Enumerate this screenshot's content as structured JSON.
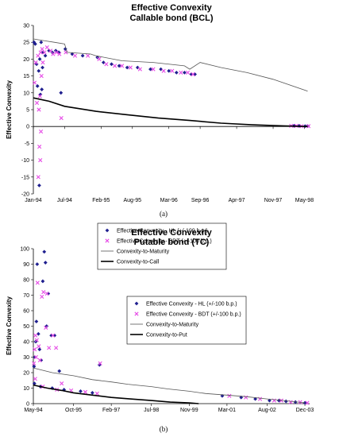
{
  "chart_data": [
    {
      "type": "scatter",
      "title": "Effective Convexity",
      "subtitle": "Callable bond (BCL)",
      "ylabel": "Effective Convexity",
      "xlabel": "",
      "panel_label": "(a)",
      "ylim": [
        -20,
        30
      ],
      "yticks": [
        -20,
        -15,
        -10,
        -5,
        0,
        5,
        10,
        15,
        20,
        25,
        30
      ],
      "xlim": [
        "1994-01",
        "1998-06"
      ],
      "xticks": [
        {
          "date": "1994-01",
          "label": "Jan-94"
        },
        {
          "date": "1994-07",
          "label": "Jul-94"
        },
        {
          "date": "1995-02",
          "label": "Feb-95"
        },
        {
          "date": "1995-08",
          "label": "Aug-95"
        },
        {
          "date": "1996-03",
          "label": "Mar-96"
        },
        {
          "date": "1996-09",
          "label": "Sep-96"
        },
        {
          "date": "1997-04",
          "label": "Apr-97"
        },
        {
          "date": "1997-11",
          "label": "Nov-97"
        },
        {
          "date": "1998-05",
          "label": "May-98"
        }
      ],
      "grid": false,
      "legend_position": "bottom-center",
      "series": [
        {
          "name": "Effective Convexity - HL (+/-100 b.p.)",
          "marker": "diamond",
          "color": "#1f1f8f",
          "points": [
            [
              "1994-01-05",
              25.0
            ],
            [
              "1994-01-12",
              24.5
            ],
            [
              "1994-01-20",
              18.5
            ],
            [
              "1994-01-25",
              12.0
            ],
            [
              "1994-02-02",
              16.5
            ],
            [
              "1994-02-08",
              20.0
            ],
            [
              "1994-02-12",
              9.5
            ],
            [
              "1994-02-16",
              25.0
            ],
            [
              "1994-02-20",
              11.0
            ],
            [
              "1994-02-24",
              17.5
            ],
            [
              "1994-02-05",
              -17.5
            ],
            [
              "1994-02-28",
              22.0
            ],
            [
              "1994-03-10",
              21.0
            ],
            [
              "1994-04-01",
              22.5
            ],
            [
              "1994-04-20",
              22.0
            ],
            [
              "1994-05-10",
              22.5
            ],
            [
              "1994-05-28",
              22.0
            ],
            [
              "1994-06-10",
              10.0
            ],
            [
              "1994-07-05",
              23.0
            ],
            [
              "1994-08-15",
              21.5
            ],
            [
              "1994-10-15",
              21.0
            ],
            [
              "1995-01-10",
              20.5
            ],
            [
              "1995-02-15",
              19.0
            ],
            [
              "1995-04-01",
              18.5
            ],
            [
              "1995-05-15",
              18.0
            ],
            [
              "1995-07-01",
              17.5
            ],
            [
              "1995-09-01",
              17.5
            ],
            [
              "1995-11-15",
              17.0
            ],
            [
              "1996-01-15",
              17.0
            ],
            [
              "1996-03-01",
              16.5
            ],
            [
              "1996-04-15",
              16.0
            ],
            [
              "1996-06-01",
              16.0
            ],
            [
              "1996-07-10",
              15.5
            ],
            [
              "1996-08-01",
              15.5
            ],
            [
              "1998-03-01",
              0.2
            ],
            [
              "1998-04-01",
              0.2
            ],
            [
              "1998-05-05",
              0.1
            ],
            [
              "1998-05-20",
              0.1
            ]
          ]
        },
        {
          "name": "Effective Convexity - BDT (+/-100 b.p.)",
          "marker": "x",
          "color": "#e64ce6",
          "points": [
            [
              "1994-01-08",
              13.0
            ],
            [
              "1994-01-15",
              19.0
            ],
            [
              "1994-01-22",
              7.0
            ],
            [
              "1994-01-28",
              21.0
            ],
            [
              "1994-02-03",
              5.0
            ],
            [
              "1994-02-06",
              -6.0
            ],
            [
              "1994-02-09",
              9.0
            ],
            [
              "1994-02-11",
              -10.0
            ],
            [
              "1994-02-13",
              22.0
            ],
            [
              "1994-02-15",
              -1.5
            ],
            [
              "1994-02-18",
              15.0
            ],
            [
              "1994-02-22",
              23.0
            ],
            [
              "1994-01-30",
              -15.0
            ],
            [
              "1994-02-26",
              19.0
            ],
            [
              "1994-03-05",
              22.0
            ],
            [
              "1994-03-20",
              23.5
            ],
            [
              "1994-04-10",
              22.5
            ],
            [
              "1994-04-25",
              21.5
            ],
            [
              "1994-05-15",
              22.0
            ],
            [
              "1994-06-01",
              21.5
            ],
            [
              "1994-06-12",
              2.5
            ],
            [
              "1994-07-08",
              22.0
            ],
            [
              "1994-09-01",
              21.0
            ],
            [
              "1994-11-15",
              21.0
            ],
            [
              "1995-01-20",
              20.0
            ],
            [
              "1995-03-01",
              18.5
            ],
            [
              "1995-04-20",
              18.0
            ],
            [
              "1995-06-01",
              18.0
            ],
            [
              "1995-07-20",
              17.5
            ],
            [
              "1995-09-15",
              17.0
            ],
            [
              "1995-12-01",
              17.0
            ],
            [
              "1996-02-01",
              16.5
            ],
            [
              "1996-03-20",
              16.5
            ],
            [
              "1996-05-10",
              16.0
            ],
            [
              "1996-06-20",
              16.0
            ],
            [
              "1996-07-20",
              15.5
            ],
            [
              "1998-02-15",
              0.2
            ],
            [
              "1998-03-15",
              0.2
            ],
            [
              "1998-04-15",
              0.1
            ],
            [
              "1998-05-25",
              0.1
            ]
          ]
        },
        {
          "name": "Convexity-to-Maturity",
          "style": "thin-line",
          "color": "#555555",
          "points": [
            [
              "1994-01-01",
              26.0
            ],
            [
              "1994-03-01",
              25.5
            ],
            [
              "1994-05-01",
              25.0
            ],
            [
              "1994-07-01",
              24.5
            ],
            [
              "1994-07-15",
              22.0
            ],
            [
              "1994-12-01",
              21.5
            ],
            [
              "1995-01-01",
              21.0
            ],
            [
              "1995-06-01",
              19.5
            ],
            [
              "1995-12-01",
              19.0
            ],
            [
              "1996-06-01",
              18.0
            ],
            [
              "1996-07-01",
              17.0
            ],
            [
              "1996-09-01",
              19.0
            ],
            [
              "1997-01-01",
              17.5
            ],
            [
              "1997-06-01",
              16.0
            ],
            [
              "1997-11-01",
              14.0
            ],
            [
              "1998-05-20",
              10.5
            ]
          ]
        },
        {
          "name": "Convexity-to-Call",
          "style": "thick-line",
          "color": "#000000",
          "points": [
            [
              "1994-01-01",
              8.5
            ],
            [
              "1994-04-01",
              7.5
            ],
            [
              "1994-07-01",
              6.0
            ],
            [
              "1995-01-01",
              4.5
            ],
            [
              "1995-07-01",
              3.5
            ],
            [
              "1996-01-01",
              2.5
            ],
            [
              "1996-07-01",
              1.8
            ],
            [
              "1997-01-01",
              1.0
            ],
            [
              "1997-07-01",
              0.5
            ],
            [
              "1998-01-01",
              0.2
            ],
            [
              "1998-05-20",
              0.0
            ]
          ]
        }
      ]
    },
    {
      "type": "scatter",
      "title": "Effective Convexity",
      "subtitle": "Putable bond (TC)",
      "ylabel": "Effective Convexity",
      "xlabel": "",
      "panel_label": "(b)",
      "ylim": [
        0,
        100
      ],
      "yticks": [
        0,
        10,
        20,
        30,
        40,
        50,
        60,
        70,
        80,
        90,
        100
      ],
      "xlim": [
        "1994-05",
        "2004-02"
      ],
      "xticks": [
        {
          "date": "1994-05",
          "label": "May-94"
        },
        {
          "date": "1995-10",
          "label": "Oct-95"
        },
        {
          "date": "1997-02",
          "label": "Feb-97"
        },
        {
          "date": "1998-07",
          "label": "Jul-98"
        },
        {
          "date": "1999-11",
          "label": "Nov-99"
        },
        {
          "date": "2001-03",
          "label": "Mar-01"
        },
        {
          "date": "2002-08",
          "label": "Aug-02"
        },
        {
          "date": "2003-12",
          "label": "Dec-03"
        }
      ],
      "grid": false,
      "legend_position": "right",
      "series": [
        {
          "name": "Effective Convexity - HL (+/-100 b.p.)",
          "marker": "diamond",
          "color": "#1f1f8f",
          "points": [
            [
              "1994-05-10",
              24.0
            ],
            [
              "1994-05-20",
              30.0
            ],
            [
              "1994-06-01",
              40.0
            ],
            [
              "1994-06-10",
              53.0
            ],
            [
              "1994-06-20",
              90.0
            ],
            [
              "1994-07-05",
              45.0
            ],
            [
              "1994-07-20",
              35.0
            ],
            [
              "1994-08-10",
              28.0
            ],
            [
              "1994-09-01",
              79.0
            ],
            [
              "1994-09-20",
              98.0
            ],
            [
              "1994-10-05",
              91.0
            ],
            [
              "1994-10-20",
              50.0
            ],
            [
              "1994-11-10",
              71.0
            ],
            [
              "1994-12-20",
              44.0
            ],
            [
              "1995-02-01",
              44.0
            ],
            [
              "1995-04-01",
              21.0
            ],
            [
              "1994-05-15",
              13.0
            ],
            [
              "1994-08-01",
              11.0
            ],
            [
              "1995-01-01",
              10.0
            ],
            [
              "1995-06-01",
              9.0
            ],
            [
              "1996-01-01",
              8.0
            ],
            [
              "1996-06-01",
              7.0
            ],
            [
              "1996-09-01",
              25.0
            ],
            [
              "2001-01-01",
              5.0
            ],
            [
              "2001-09-01",
              4.0
            ],
            [
              "2002-03-01",
              3.0
            ],
            [
              "2002-09-01",
              2.0
            ],
            [
              "2003-01-01",
              2.0
            ],
            [
              "2003-04-01",
              1.5
            ],
            [
              "2003-08-01",
              1.0
            ],
            [
              "2003-12-01",
              0.5
            ]
          ]
        },
        {
          "name": "Effective Convexity - BDT (+/-100 b.p.)",
          "marker": "x",
          "color": "#e64ce6",
          "points": [
            [
              "1994-05-08",
              26.0
            ],
            [
              "1994-05-18",
              35.0
            ],
            [
              "1994-05-28",
              44.0
            ],
            [
              "1994-06-05",
              30.0
            ],
            [
              "1994-06-15",
              41.0
            ],
            [
              "1994-06-25",
              78.0
            ],
            [
              "1994-07-10",
              37.0
            ],
            [
              "1994-07-25",
              28.0
            ],
            [
              "1994-08-20",
              69.0
            ],
            [
              "1994-09-10",
              72.0
            ],
            [
              "1994-10-10",
              49.0
            ],
            [
              "1994-10-25",
              71.0
            ],
            [
              "1994-11-20",
              36.0
            ],
            [
              "1995-01-10",
              44.0
            ],
            [
              "1995-02-20",
              36.0
            ],
            [
              "1995-05-01",
              13.0
            ],
            [
              "1994-05-25",
              16.0
            ],
            [
              "1994-09-01",
              11.0
            ],
            [
              "1995-03-01",
              9.0
            ],
            [
              "1995-09-01",
              8.5
            ],
            [
              "1996-03-01",
              7.5
            ],
            [
              "1996-08-01",
              6.5
            ],
            [
              "1996-09-10",
              26.0
            ],
            [
              "2001-04-01",
              5.0
            ],
            [
              "2001-11-01",
              4.0
            ],
            [
              "2002-05-01",
              3.0
            ],
            [
              "2002-11-01",
              2.0
            ],
            [
              "2003-02-01",
              2.0
            ],
            [
              "2003-06-01",
              1.0
            ],
            [
              "2003-10-01",
              1.0
            ],
            [
              "2004-01-01",
              0.5
            ]
          ]
        },
        {
          "name": "Convexity-to-Maturity",
          "style": "thin-line",
          "color": "#555555",
          "points": [
            [
              "1994-05-01",
              23.0
            ],
            [
              "1995-01-01",
              20.0
            ],
            [
              "1995-10-01",
              18.0
            ],
            [
              "1996-06-01",
              15.5
            ],
            [
              "1997-02-01",
              14.0
            ],
            [
              "1997-09-01",
              12.5
            ],
            [
              "1998-07-01",
              11.0
            ],
            [
              "1999-02-01",
              9.5
            ],
            [
              "1999-11-01",
              8.0
            ],
            [
              "2000-06-01",
              6.5
            ],
            [
              "2001-03-01",
              5.5
            ],
            [
              "2001-11-01",
              4.5
            ],
            [
              "2002-08-01",
              3.0
            ],
            [
              "2003-03-01",
              2.0
            ],
            [
              "2003-12-01",
              0.5
            ]
          ]
        },
        {
          "name": "Convexity-to-Put",
          "style": "thick-line",
          "color": "#000000",
          "points": [
            [
              "1994-05-01",
              12.0
            ],
            [
              "1994-11-01",
              10.0
            ],
            [
              "1995-05-01",
              8.5
            ],
            [
              "1995-10-01",
              7.0
            ],
            [
              "1996-06-01",
              5.5
            ],
            [
              "1997-02-01",
              4.0
            ],
            [
              "1997-10-01",
              3.0
            ],
            [
              "1998-07-01",
              2.0
            ],
            [
              "1999-03-01",
              1.0
            ],
            [
              "1999-11-01",
              0.5
            ],
            [
              "2000-03-01",
              0.0
            ]
          ]
        }
      ]
    }
  ]
}
